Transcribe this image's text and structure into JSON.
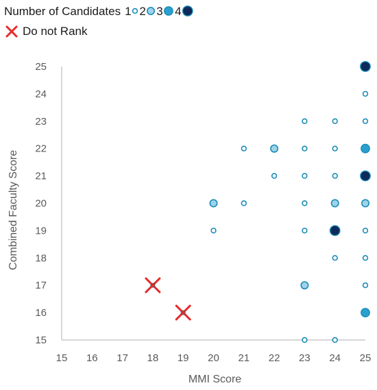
{
  "chart_data": {
    "type": "scatter",
    "title": "",
    "xlabel": "MMI Score",
    "ylabel": "Combined Faculty Score",
    "xlim": [
      15,
      25
    ],
    "ylim": [
      15,
      25
    ],
    "xticks": [
      15,
      16,
      17,
      18,
      19,
      20,
      21,
      22,
      23,
      24,
      25
    ],
    "yticks": [
      15,
      16,
      17,
      18,
      19,
      20,
      21,
      22,
      23,
      24,
      25
    ],
    "grid": false,
    "legend": {
      "placement": "top-left",
      "size_title": "Number of  Candidates",
      "size_entries": [
        {
          "label": "1",
          "count": 1
        },
        {
          "label": "2",
          "count": 2
        },
        {
          "label": "3",
          "count": 3
        },
        {
          "label": "4",
          "count": 4
        }
      ],
      "marker_entry": {
        "label": "Do not Rank"
      }
    },
    "colors": {
      "1": "#ffffff",
      "2": "#9fd3ea",
      "3": "#2aa0cf",
      "4": "#0c2a5a",
      "edge": "#1b8cb8",
      "do_not_rank": "#e8292a",
      "axis": "#bfbfbf"
    },
    "series": [
      {
        "name": "Number of  Candidates",
        "points": [
          {
            "x": 20,
            "y": 19,
            "count": 1
          },
          {
            "x": 20,
            "y": 20,
            "count": 2
          },
          {
            "x": 21,
            "y": 20,
            "count": 1
          },
          {
            "x": 21,
            "y": 22,
            "count": 1
          },
          {
            "x": 22,
            "y": 21,
            "count": 1
          },
          {
            "x": 22,
            "y": 22,
            "count": 2
          },
          {
            "x": 23,
            "y": 15,
            "count": 1
          },
          {
            "x": 23,
            "y": 17,
            "count": 2
          },
          {
            "x": 23,
            "y": 19,
            "count": 1
          },
          {
            "x": 23,
            "y": 20,
            "count": 1
          },
          {
            "x": 23,
            "y": 21,
            "count": 1
          },
          {
            "x": 23,
            "y": 22,
            "count": 1
          },
          {
            "x": 23,
            "y": 23,
            "count": 1
          },
          {
            "x": 24,
            "y": 15,
            "count": 1
          },
          {
            "x": 24,
            "y": 18,
            "count": 1
          },
          {
            "x": 24,
            "y": 19,
            "count": 4
          },
          {
            "x": 24,
            "y": 20,
            "count": 2
          },
          {
            "x": 24,
            "y": 21,
            "count": 1
          },
          {
            "x": 24,
            "y": 22,
            "count": 1
          },
          {
            "x": 24,
            "y": 23,
            "count": 1
          },
          {
            "x": 25,
            "y": 16,
            "count": 3
          },
          {
            "x": 25,
            "y": 17,
            "count": 1
          },
          {
            "x": 25,
            "y": 18,
            "count": 1
          },
          {
            "x": 25,
            "y": 19,
            "count": 1
          },
          {
            "x": 25,
            "y": 20,
            "count": 2
          },
          {
            "x": 25,
            "y": 21,
            "count": 4
          },
          {
            "x": 25,
            "y": 22,
            "count": 3
          },
          {
            "x": 25,
            "y": 23,
            "count": 1
          },
          {
            "x": 25,
            "y": 24,
            "count": 1
          },
          {
            "x": 25,
            "y": 25,
            "count": 4
          }
        ]
      },
      {
        "name": "Do not Rank",
        "points": [
          {
            "x": 18,
            "y": 17
          },
          {
            "x": 19,
            "y": 16
          }
        ]
      }
    ]
  }
}
